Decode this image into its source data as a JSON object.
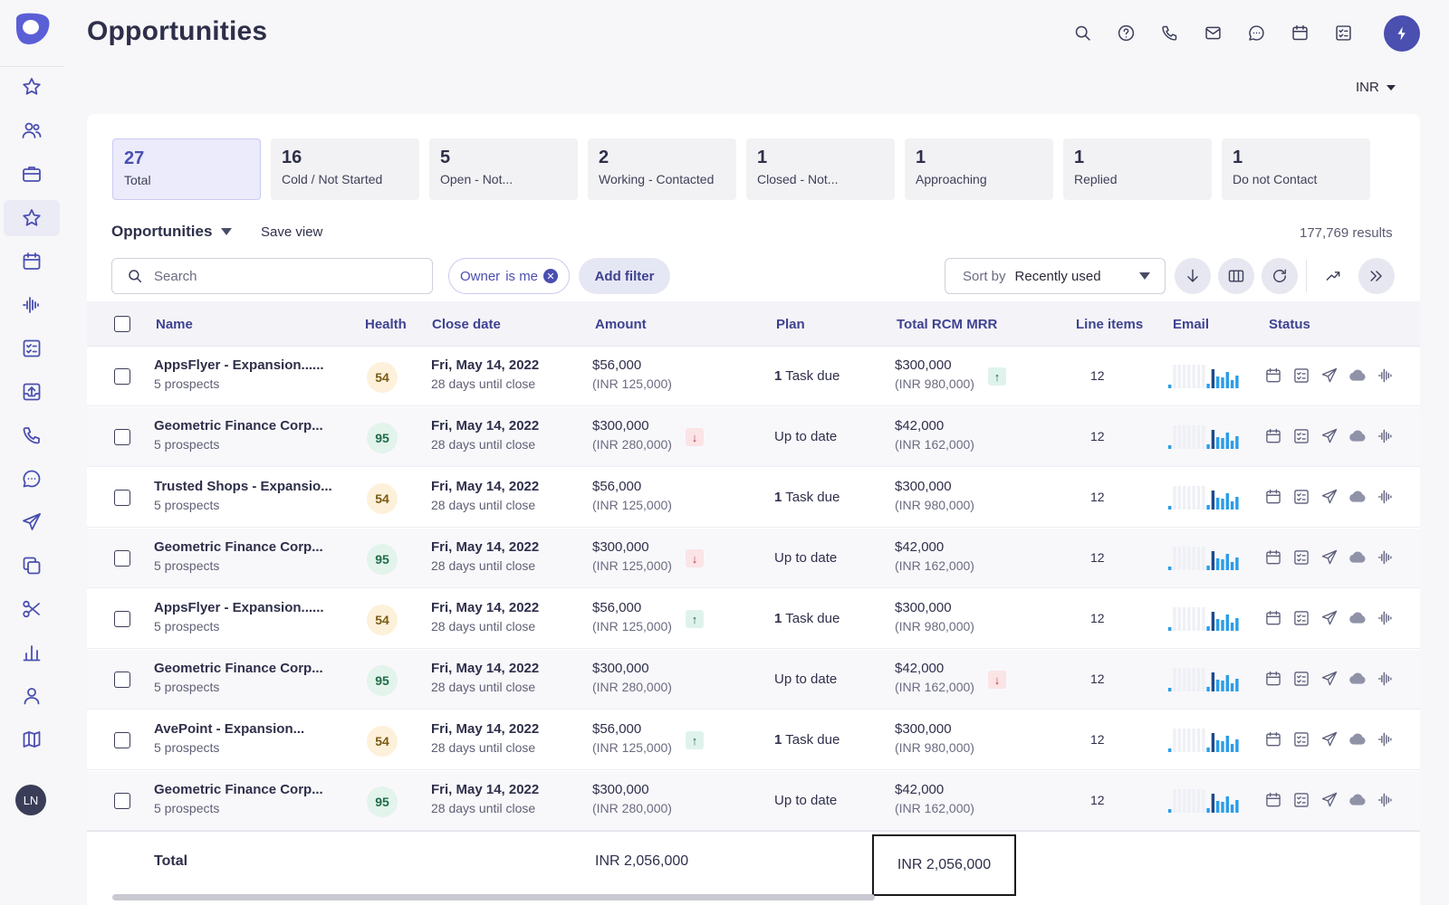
{
  "header": {
    "title": "Opportunities",
    "currency": "INR"
  },
  "user": {
    "initials": "LN"
  },
  "stats": [
    {
      "count": "27",
      "label": "Total"
    },
    {
      "count": "16",
      "label": "Cold / Not Started"
    },
    {
      "count": "5",
      "label": "Open - Not..."
    },
    {
      "count": "2",
      "label": "Working - Contacted"
    },
    {
      "count": "1",
      "label": "Closed - Not..."
    },
    {
      "count": "1",
      "label": "Approaching"
    },
    {
      "count": "1",
      "label": "Replied"
    },
    {
      "count": "1",
      "label": "Do not Contact"
    }
  ],
  "toolbar": {
    "view_name": "Opportunities",
    "save_view": "Save view",
    "results": "177,769 results",
    "search_placeholder": "Search",
    "owner_filter_key": "Owner",
    "owner_filter_value": "is me",
    "add_filter": "Add filter",
    "sort_by_label": "Sort by",
    "sort_value": "Recently used"
  },
  "table": {
    "headers": {
      "name": "Name",
      "health": "Health",
      "close_date": "Close date",
      "amount": "Amount",
      "plan": "Plan",
      "mrr": "Total RCM MRR",
      "line_items": "Line items",
      "email": "Email",
      "status": "Status"
    },
    "rows": [
      {
        "name": "AppsFlyer - Expansion......",
        "prospects": "5 prospects",
        "health": "54",
        "health_level": "warn",
        "date": "Fri, May 14, 2022",
        "until": "28 days until close",
        "amount": "$56,000",
        "amount_inr": "(INR 125,000)",
        "amount_trend": "",
        "plan_count": "1",
        "plan_text": "Task due",
        "mrr": "$300,000",
        "mrr_inr": "(INR 980,000)",
        "mrr_trend": "up",
        "line_items": "12"
      },
      {
        "name": "Geometric Finance Corp...",
        "prospects": "5 prospects",
        "health": "95",
        "health_level": "good",
        "date": "Fri, May 14, 2022",
        "until": "28 days until close",
        "amount": "$300,000",
        "amount_inr": "(INR 280,000)",
        "amount_trend": "down",
        "plan_count": "",
        "plan_text": "Up to date",
        "mrr": "$42,000",
        "mrr_inr": "(INR 162,000)",
        "mrr_trend": "",
        "line_items": "12"
      },
      {
        "name": "Trusted Shops - Expansio...",
        "prospects": "5 prospects",
        "health": "54",
        "health_level": "warn",
        "date": "Fri, May 14, 2022",
        "until": "28 days until close",
        "amount": "$56,000",
        "amount_inr": "(INR 125,000)",
        "amount_trend": "",
        "plan_count": "1",
        "plan_text": "Task due",
        "mrr": "$300,000",
        "mrr_inr": "(INR 980,000)",
        "mrr_trend": "",
        "line_items": "12"
      },
      {
        "name": "Geometric Finance Corp...",
        "prospects": "5 prospects",
        "health": "95",
        "health_level": "good",
        "date": "Fri, May 14, 2022",
        "until": "28 days until close",
        "amount": "$300,000",
        "amount_inr": "(INR 125,000)",
        "amount_trend": "down",
        "plan_count": "",
        "plan_text": "Up to date",
        "mrr": "$42,000",
        "mrr_inr": "(INR 162,000)",
        "mrr_trend": "",
        "line_items": "12"
      },
      {
        "name": "AppsFlyer - Expansion......",
        "prospects": "5 prospects",
        "health": "54",
        "health_level": "warn",
        "date": "Fri, May 14, 2022",
        "until": "28 days until close",
        "amount": "$56,000",
        "amount_inr": "(INR 125,000)",
        "amount_trend": "up",
        "plan_count": "1",
        "plan_text": "Task due",
        "mrr": "$300,000",
        "mrr_inr": "(INR 980,000)",
        "mrr_trend": "",
        "line_items": "12"
      },
      {
        "name": "Geometric Finance Corp...",
        "prospects": "5 prospects",
        "health": "95",
        "health_level": "good",
        "date": "Fri, May 14, 2022",
        "until": "28 days until close",
        "amount": "$300,000",
        "amount_inr": "(INR 280,000)",
        "amount_trend": "",
        "plan_count": "",
        "plan_text": "Up to date",
        "mrr": "$42,000",
        "mrr_inr": "(INR 162,000)",
        "mrr_trend": "down",
        "line_items": "12"
      },
      {
        "name": "AvePoint - Expansion...",
        "prospects": "5 prospects",
        "health": "54",
        "health_level": "warn",
        "date": "Fri, May 14, 2022",
        "until": "28 days until close",
        "amount": "$56,000",
        "amount_inr": "(INR 125,000)",
        "amount_trend": "up",
        "plan_count": "1",
        "plan_text": "Task due",
        "mrr": "$300,000",
        "mrr_inr": "(INR 980,000)",
        "mrr_trend": "",
        "line_items": "12"
      },
      {
        "name": "Geometric Finance Corp...",
        "prospects": "5 prospects",
        "health": "95",
        "health_level": "good",
        "date": "Fri, May 14, 2022",
        "until": "28 days until close",
        "amount": "$300,000",
        "amount_inr": "(INR 280,000)",
        "amount_trend": "",
        "plan_count": "",
        "plan_text": "Up to date",
        "mrr": "$42,000",
        "mrr_inr": "(INR 162,000)",
        "mrr_trend": "",
        "line_items": "12"
      }
    ],
    "total": {
      "label": "Total",
      "amount": "INR 2,056,000",
      "mrr": "INR 2,056,000"
    }
  },
  "colors": {
    "accent": "#4a4fb0",
    "trend_up": "#1f6b47",
    "trend_down": "#c8323f"
  }
}
